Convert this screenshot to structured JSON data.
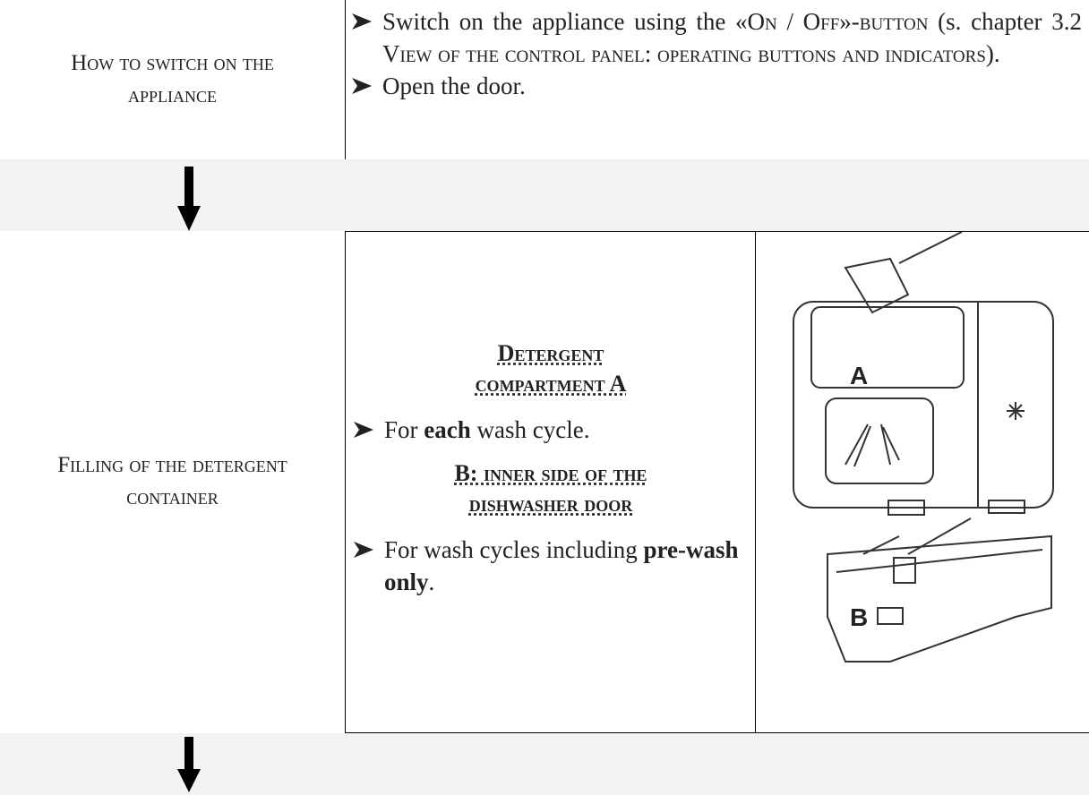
{
  "step1": {
    "label": "How to switch on the appliance",
    "bullets": [
      [
        "Switch on the appliance using the ",
        "«On / Off»-button",
        " (s. chapter 3.2 ",
        "View of the control panel: operating buttons and indicators",
        ")."
      ],
      [
        "Open the door."
      ]
    ]
  },
  "step2": {
    "label": "Filling of the detergent container",
    "heading_a": "Detergent compartment A",
    "bullet_a": [
      "For ",
      "each",
      " wash cycle."
    ],
    "heading_b": "B: inner side of the dishwasher door",
    "bullet_b": [
      "For wash cycles including ",
      "pre-wash only",
      "."
    ],
    "image_labels": [
      "A",
      "B"
    ]
  }
}
